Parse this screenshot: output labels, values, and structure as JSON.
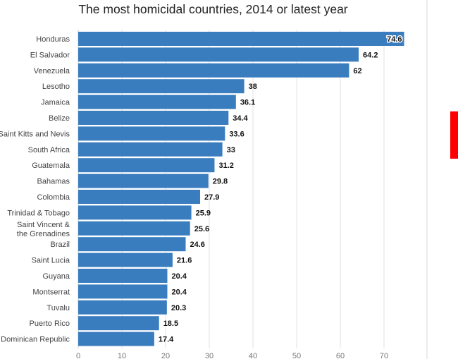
{
  "chart_data": {
    "type": "bar",
    "orientation": "horizontal",
    "title": "The most homicidal countries, 2014 or latest year",
    "categories": [
      "Honduras",
      "El Salvador",
      "Venezuela",
      "Lesotho",
      "Jamaica",
      "Belize",
      "Saint Kitts and Nevis",
      "South Africa",
      "Guatemala",
      "Bahamas",
      "Colombia",
      "Trinidad & Tobago",
      "Saint Vincent & the Grenadines",
      "Brazil",
      "Saint Lucia",
      "Guyana",
      "Montserrat",
      "Tuvalu",
      "Puerto Rico",
      "Dominican Republic"
    ],
    "values": [
      74.6,
      64.2,
      62,
      38,
      36.1,
      34.4,
      33.6,
      33,
      31.2,
      29.8,
      27.9,
      25.9,
      25.6,
      24.6,
      21.6,
      20.4,
      20.4,
      20.3,
      18.5,
      17.4
    ],
    "x_ticks": [
      0,
      10,
      20,
      30,
      40,
      50,
      60,
      70
    ],
    "xlim": [
      0,
      80
    ],
    "grid": true,
    "colors": {
      "bar": "#3a7dbf",
      "grid": "#e2e2e2",
      "label": "#444444",
      "value_label": "#111111",
      "marker": "#ff0000"
    }
  }
}
